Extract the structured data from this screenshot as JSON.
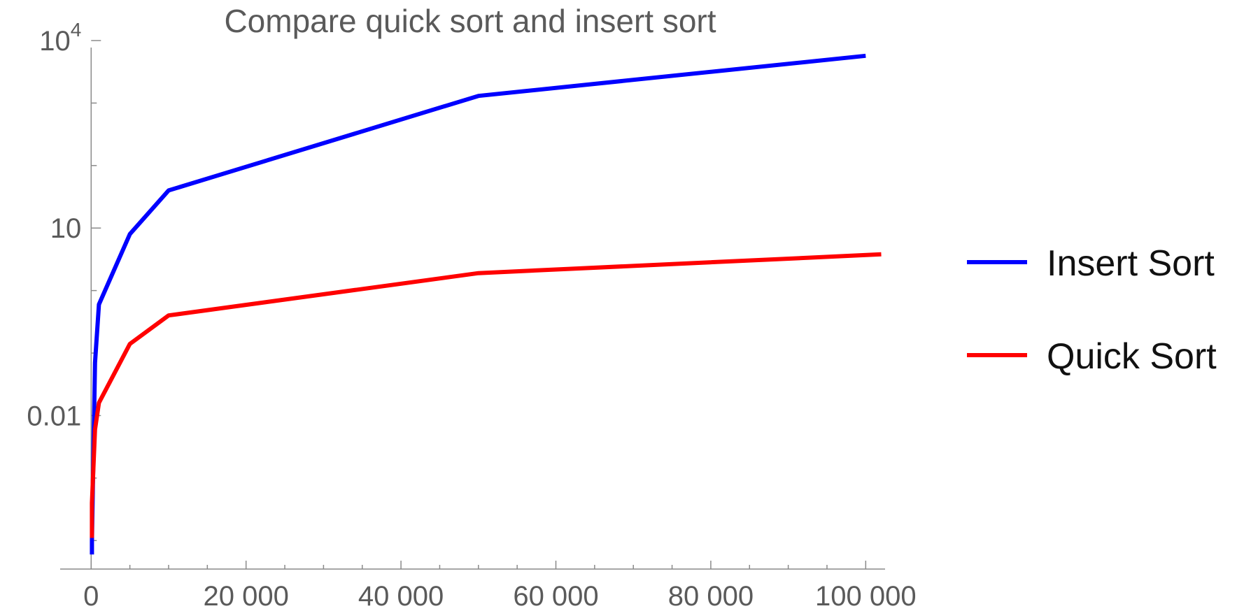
{
  "chart_data": {
    "type": "line",
    "title": "Compare quick sort and insert sort",
    "xlabel": "",
    "ylabel": "",
    "y_scale": "log",
    "xlim": [
      -4000,
      102500
    ],
    "ylim": [
      3.5e-05,
      10000
    ],
    "grid": false,
    "legend_position": "right",
    "x_ticks": [
      {
        "value": 0,
        "label": "0"
      },
      {
        "value": 20000,
        "label": "20 000"
      },
      {
        "value": 40000,
        "label": "40 000"
      },
      {
        "value": 60000,
        "label": "60 000"
      },
      {
        "value": 80000,
        "label": "80 000"
      },
      {
        "value": 100000,
        "label": "100 000"
      }
    ],
    "y_ticks": [
      {
        "value": 0.01,
        "label": "0.01"
      },
      {
        "value": 10,
        "label": "10"
      },
      {
        "value": 10000,
        "label": "10",
        "exponent": "4"
      }
    ],
    "series": [
      {
        "name": "Insert Sort",
        "color": "#0000ff",
        "x": [
          100,
          100,
          500,
          1000,
          5000,
          10000,
          50000,
          100000
        ],
        "y": [
          6e-05,
          0.0001,
          0.07,
          0.6,
          8,
          40,
          1300,
          5700
        ]
      },
      {
        "name": "Quick Sort",
        "color": "#ff0000",
        "x": [
          100,
          100,
          500,
          1000,
          5000,
          10000,
          50000,
          102000
        ],
        "y": [
          0.00011,
          0.0004,
          0.006,
          0.016,
          0.14,
          0.4,
          1.9,
          3.8
        ]
      }
    ]
  }
}
